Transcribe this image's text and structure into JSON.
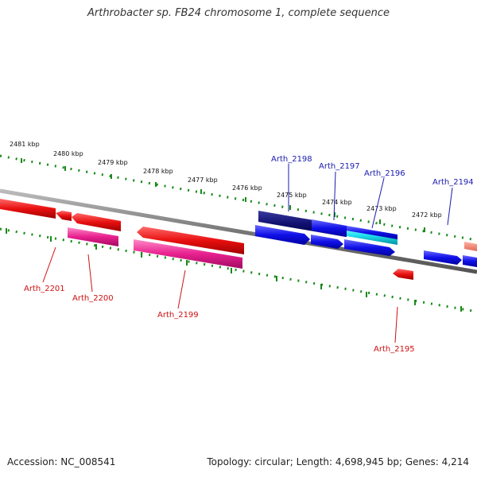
{
  "title": "Arthrobacter sp. FB24 chromosome 1, complete sequence",
  "footer": {
    "accession": "Accession: NC_008541",
    "topology": "Topology: circular; Length: 4,698,945 bp; Genes: 4,214"
  },
  "kbp_labels": [
    "2481 kbp",
    "2480 kbp",
    "2479 kbp",
    "2478 kbp",
    "2477 kbp",
    "2476 kbp",
    "2475 kbp",
    "2474 kbp",
    "2473 kbp",
    "2472 kbp"
  ],
  "gene_labels": {
    "arth_2198": "Arth_2198",
    "arth_2197": "Arth_2197",
    "arth_2196": "Arth_2196",
    "arth_2194": "Arth_2194",
    "arth_2201": "Arth_2201",
    "arth_2200": "Arth_2200",
    "arth_2199": "Arth_2199",
    "arth_2195": "Arth_2195"
  },
  "colors": {
    "forward_gene": "#0a0ae0",
    "reverse_gene": "#e01010",
    "cds_forward": "#1a1ae6",
    "cds_reverse": "#e0208a",
    "backbone": "#888888",
    "tick": "#1a8a1a"
  }
}
